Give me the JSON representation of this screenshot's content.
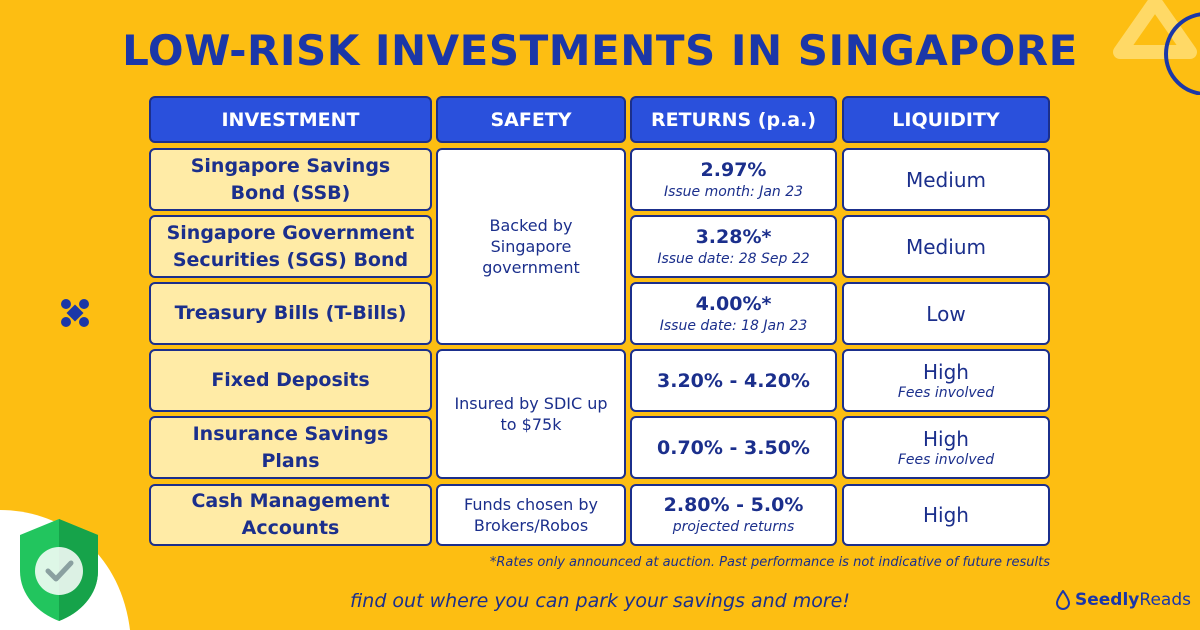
{
  "title": "LOW-RISK INVESTMENTS IN SINGAPORE",
  "headers": {
    "investment": "INVESTMENT",
    "safety": "SAFETY",
    "returns": "RETURNS (p.a.)",
    "liquidity": "LIQUIDITY"
  },
  "rows": [
    {
      "investment": "Singapore Savings Bond (SSB)",
      "returns": "2.97%",
      "returns_note": "Issue month: Jan 23",
      "liquidity": "Medium",
      "liquidity_note": ""
    },
    {
      "investment": "Singapore Government Securities (SGS) Bond",
      "returns": "3.28%*",
      "returns_note": "Issue date: 28 Sep 22",
      "liquidity": "Medium",
      "liquidity_note": ""
    },
    {
      "investment": "Treasury Bills (T-Bills)",
      "returns": "4.00%*",
      "returns_note": "Issue date: 18 Jan 23",
      "liquidity": "Low",
      "liquidity_note": ""
    },
    {
      "investment": "Fixed Deposits",
      "returns": "3.20% - 4.20%",
      "returns_note": "",
      "liquidity": "High",
      "liquidity_note": "Fees involved"
    },
    {
      "investment": "Insurance Savings Plans",
      "returns": "0.70% - 3.50%",
      "returns_note": "",
      "liquidity": "High",
      "liquidity_note": "Fees involved"
    },
    {
      "investment": "Cash Management Accounts",
      "returns": "2.80% - 5.0%",
      "returns_note": "projected returns",
      "liquidity": "High",
      "liquidity_note": ""
    }
  ],
  "safety_groups": [
    "Backed by Singapore government",
    "Insured by SDIC up to $75k",
    "Funds chosen by Brokers/Robos"
  ],
  "footnote": "*Rates only announced at auction. Past performance is not indicative of future results",
  "tagline": "find out where you can park your savings and more!",
  "brand": {
    "part1": "Seedly",
    "part2": "Reads"
  },
  "colors": {
    "background": "#FDBE12",
    "header": "#2A50DC",
    "investment_cell": "#FFEBA6",
    "text": "#1B2F8C",
    "shield": "#22C55E"
  },
  "icons": [
    "shield-check-icon",
    "close-icon",
    "triangle-decoration",
    "circle-decoration",
    "droplet-icon"
  ]
}
